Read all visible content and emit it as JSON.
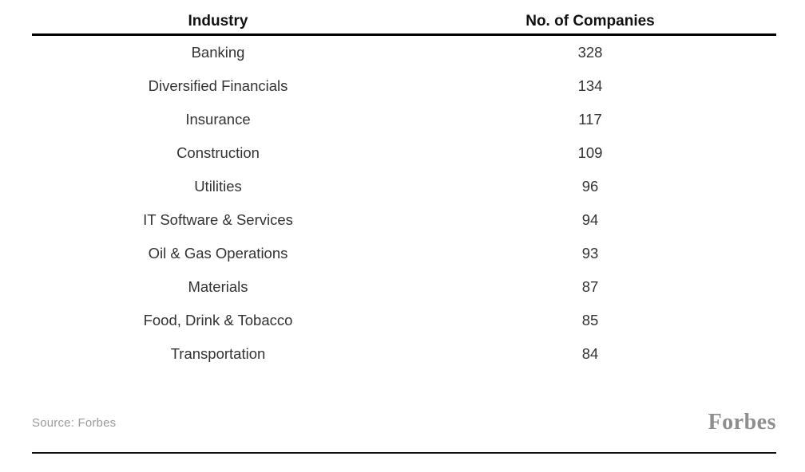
{
  "table": {
    "columns": [
      {
        "label": "Industry"
      },
      {
        "label": "No. of Companies"
      }
    ],
    "rows": [
      {
        "industry": "Banking",
        "count": "328"
      },
      {
        "industry": "Diversified Financials",
        "count": "134"
      },
      {
        "industry": "Insurance",
        "count": "117"
      },
      {
        "industry": "Construction",
        "count": "109"
      },
      {
        "industry": "Utilities",
        "count": "96"
      },
      {
        "industry": "IT Software & Services",
        "count": "94"
      },
      {
        "industry": "Oil & Gas Operations",
        "count": "93"
      },
      {
        "industry": "Materials",
        "count": "87"
      },
      {
        "industry": "Food, Drink & Tobacco",
        "count": "85"
      },
      {
        "industry": "Transportation",
        "count": "84"
      }
    ]
  },
  "footer": {
    "source": "Source: Forbes",
    "logo": "Forbes"
  },
  "colors": {
    "header_text": "#111111",
    "row_text": "#333333",
    "source_text": "#9a9a9a",
    "logo_text": "#8e8e8e",
    "thick_rule": "#000000",
    "thin_rule": "#111111",
    "background": "#ffffff"
  },
  "chart_data": {
    "type": "table",
    "title": "",
    "columns": [
      "Industry",
      "No. of Companies"
    ],
    "categories": [
      "Banking",
      "Diversified Financials",
      "Insurance",
      "Construction",
      "Utilities",
      "IT Software & Services",
      "Oil & Gas Operations",
      "Materials",
      "Food, Drink & Tobacco",
      "Transportation"
    ],
    "values": [
      328,
      134,
      117,
      109,
      96,
      94,
      93,
      87,
      85,
      84
    ],
    "source": "Forbes",
    "layout": {
      "column_alignment": "center",
      "grid": "off",
      "header_rule": "thick",
      "bottom_rule": "thin"
    }
  }
}
